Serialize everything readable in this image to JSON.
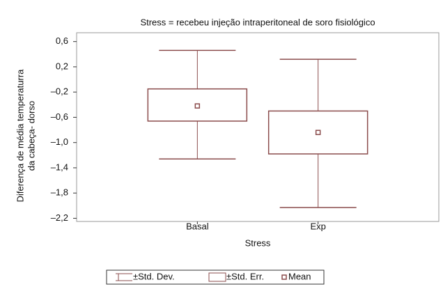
{
  "chart_data": {
    "type": "box",
    "title": "Stress = recebeu injeção intraperitoneal de soro fisiológico",
    "xlabel": "Stress",
    "ylabel": [
      "Diferença de média temperaturra",
      "da cabeça- dorso"
    ],
    "categories": [
      "Basal",
      "Exp"
    ],
    "color": "#8a4b4b",
    "sd_low": [
      -1.26,
      -2.03
    ],
    "se_low": [
      -0.66,
      -1.18
    ],
    "mean": [
      -0.42,
      -0.84
    ],
    "se_high": [
      -0.15,
      -0.5
    ],
    "sd_high": [
      0.46,
      0.32
    ],
    "ylim": [
      -2.25,
      0.74
    ],
    "yticks": [
      {
        "value": 0.6,
        "label": "0,6"
      },
      {
        "value": 0.2,
        "label": "0,2"
      },
      {
        "value": -0.2,
        "label": "–0,2"
      },
      {
        "value": -0.6,
        "label": "–0,6"
      },
      {
        "value": -1.0,
        "label": "–1,0"
      },
      {
        "value": -1.4,
        "label": "–1,4"
      },
      {
        "value": -1.8,
        "label": "–1,8"
      },
      {
        "value": -2.2,
        "label": "–2,2"
      }
    ],
    "legend": [
      "±Std. Dev.",
      "±Std. Err.",
      "Mean"
    ]
  }
}
